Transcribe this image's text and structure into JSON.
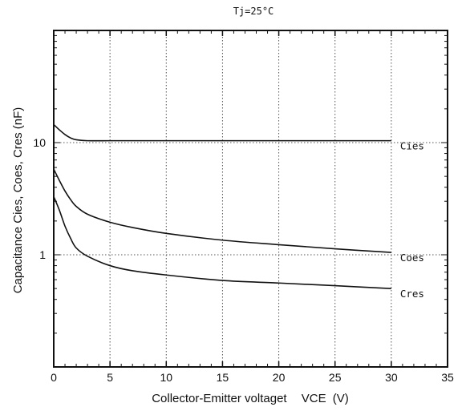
{
  "chart_data": {
    "type": "line",
    "title": "Tj=25°C",
    "xlabel_main": "Collector-Emitter voltaget",
    "xlabel_symbol": "VCE",
    "xlabel_unit": "(V)",
    "ylabel": "Capacitance   Cies, Coes, Cres (nF)",
    "xlim": [
      0,
      35
    ],
    "ylim": [
      0.1,
      100
    ],
    "yscale": "log",
    "grid": true,
    "x_ticks": [
      "0",
      "5",
      "10",
      "15",
      "20",
      "25",
      "30",
      "35"
    ],
    "y_ticks": [
      "1",
      "10"
    ],
    "series": [
      {
        "name": "Cies",
        "x": [
          0,
          0.5,
          1,
          1.5,
          2,
          3,
          5,
          10,
          15,
          20,
          25,
          30
        ],
        "y": [
          14.5,
          13.0,
          11.8,
          11.0,
          10.6,
          10.4,
          10.4,
          10.4,
          10.4,
          10.4,
          10.4,
          10.4
        ]
      },
      {
        "name": "Coes",
        "x": [
          0,
          0.5,
          1,
          1.5,
          2,
          3,
          5,
          7,
          10,
          15,
          20,
          25,
          30
        ],
        "y": [
          5.8,
          4.6,
          3.7,
          3.1,
          2.7,
          2.3,
          1.95,
          1.75,
          1.55,
          1.35,
          1.23,
          1.13,
          1.05
        ]
      },
      {
        "name": "Cres",
        "x": [
          0,
          0.5,
          1,
          1.5,
          2,
          3,
          5,
          7,
          10,
          15,
          20,
          25,
          30
        ],
        "y": [
          3.3,
          2.5,
          1.8,
          1.4,
          1.15,
          0.97,
          0.8,
          0.72,
          0.66,
          0.59,
          0.56,
          0.53,
          0.5
        ]
      }
    ]
  }
}
